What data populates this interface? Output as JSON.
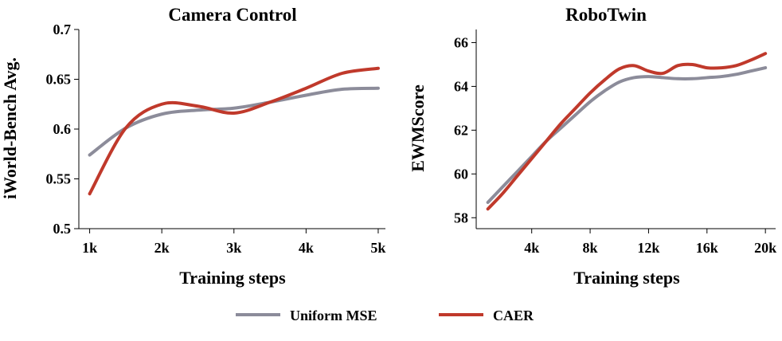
{
  "legend": {
    "items": [
      {
        "label": "Uniform MSE",
        "color": "#8c8c9a"
      },
      {
        "label": "CAER",
        "color": "#c0392b"
      }
    ]
  },
  "chart_data": [
    {
      "type": "line",
      "title": "Camera Control",
      "xlabel": "Training steps",
      "ylabel": "iWorld-Bench Avg.",
      "x": [
        1,
        1.5,
        2,
        2.5,
        3,
        3.5,
        4,
        4.5,
        5
      ],
      "x_tick_values": [
        1,
        2,
        3,
        4,
        5
      ],
      "x_tick_labels": [
        "1k",
        "2k",
        "3k",
        "4k",
        "5k"
      ],
      "y_tick_values": [
        0.5,
        0.55,
        0.6,
        0.65,
        0.7
      ],
      "y_tick_labels": [
        "0.5",
        "0.55",
        "0.6",
        "0.65",
        "0.7"
      ],
      "xlim": [
        0.85,
        5.1
      ],
      "ylim": [
        0.5,
        0.7
      ],
      "grid": false,
      "series": [
        {
          "name": "Uniform MSE",
          "color": "#8c8c9a",
          "values": [
            0.574,
            0.601,
            0.615,
            0.619,
            0.621,
            0.627,
            0.634,
            0.64,
            0.641
          ]
        },
        {
          "name": "CAER",
          "color": "#c0392b",
          "values": [
            0.535,
            0.601,
            0.625,
            0.623,
            0.616,
            0.627,
            0.641,
            0.656,
            0.661
          ]
        }
      ]
    },
    {
      "type": "line",
      "title": "RoboTwin",
      "xlabel": "Training steps",
      "ylabel": "EWMScore",
      "x": [
        1,
        2,
        3,
        4,
        5,
        6,
        7,
        8,
        9,
        10,
        11,
        12,
        13,
        14,
        15,
        16,
        17,
        18,
        19,
        20
      ],
      "x_tick_values": [
        4,
        8,
        12,
        16,
        20
      ],
      "x_tick_labels": [
        "4k",
        "8k",
        "12k",
        "16k",
        "20k"
      ],
      "y_tick_values": [
        58,
        60,
        62,
        64,
        66
      ],
      "y_tick_labels": [
        "58",
        "60",
        "62",
        "64",
        "66"
      ],
      "xlim": [
        0.2,
        20.7
      ],
      "ylim": [
        57.5,
        66.6
      ],
      "grid": false,
      "series": [
        {
          "name": "Uniform MSE",
          "color": "#8c8c9a",
          "values": [
            58.7,
            59.4,
            60.1,
            60.8,
            61.5,
            62.1,
            62.7,
            63.3,
            63.8,
            64.2,
            64.4,
            64.45,
            64.4,
            64.35,
            64.35,
            64.4,
            64.45,
            64.55,
            64.7,
            64.85
          ]
        },
        {
          "name": "CAER",
          "color": "#c0392b",
          "values": [
            58.4,
            59.1,
            59.9,
            60.7,
            61.5,
            62.3,
            63.0,
            63.7,
            64.3,
            64.8,
            64.95,
            64.7,
            64.6,
            64.95,
            65.0,
            64.85,
            64.85,
            64.95,
            65.2,
            65.5
          ]
        }
      ]
    }
  ]
}
